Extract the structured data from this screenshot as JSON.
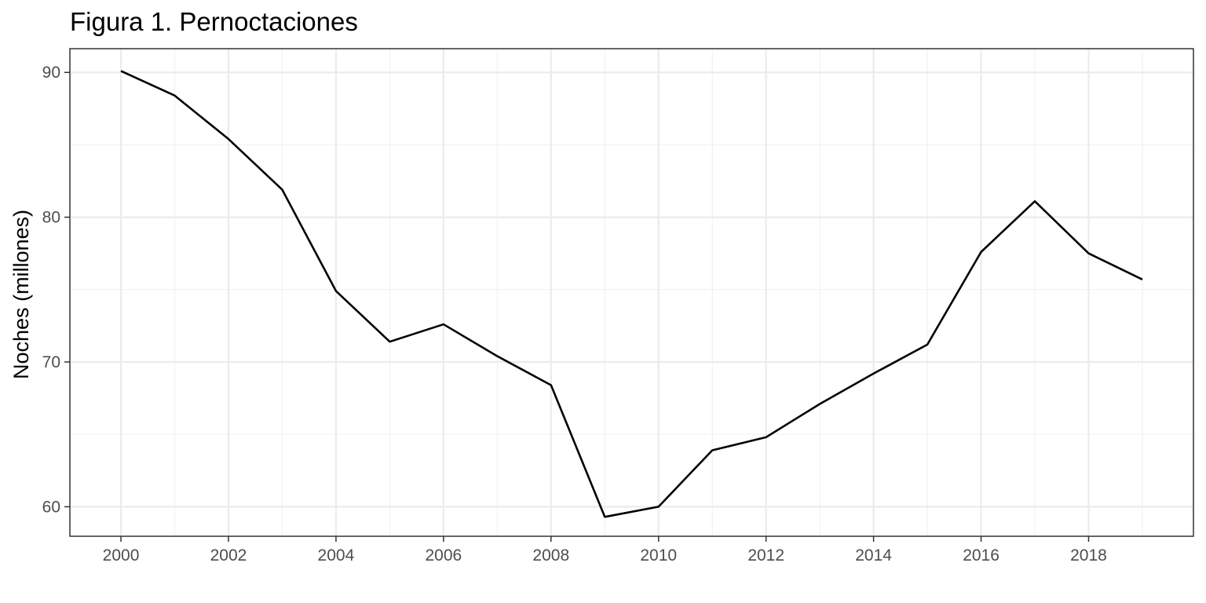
{
  "chart_data": {
    "type": "line",
    "title": "Figura 1. Pernoctaciones",
    "xlabel": "",
    "ylabel": "Noches (millones)",
    "x": [
      2000,
      2001,
      2002,
      2003,
      2004,
      2005,
      2006,
      2007,
      2008,
      2009,
      2010,
      2011,
      2012,
      2013,
      2014,
      2015,
      2016,
      2017,
      2018,
      2019
    ],
    "series": [
      {
        "values": [
          90.1,
          88.4,
          85.4,
          81.9,
          74.9,
          71.4,
          72.6,
          70.4,
          68.4,
          59.3,
          60.0,
          63.9,
          64.8,
          67.1,
          69.2,
          71.2,
          77.6,
          81.1,
          77.5,
          75.7
        ],
        "color": "#000000"
      }
    ],
    "xlim": [
      1999.05,
      2019.95
    ],
    "ylim": [
      57.96,
      91.64
    ],
    "xticks": [
      2000,
      2002,
      2004,
      2006,
      2008,
      2010,
      2012,
      2014,
      2016,
      2018
    ],
    "xtick_labels": [
      "2000",
      "2002",
      "2004",
      "2006",
      "2008",
      "2010",
      "2012",
      "2014",
      "2016",
      "2018"
    ],
    "yticks": [
      60,
      70,
      80,
      90
    ],
    "ytick_labels": [
      "60",
      "70",
      "80",
      "90"
    ],
    "grid": true,
    "legend": "none"
  }
}
